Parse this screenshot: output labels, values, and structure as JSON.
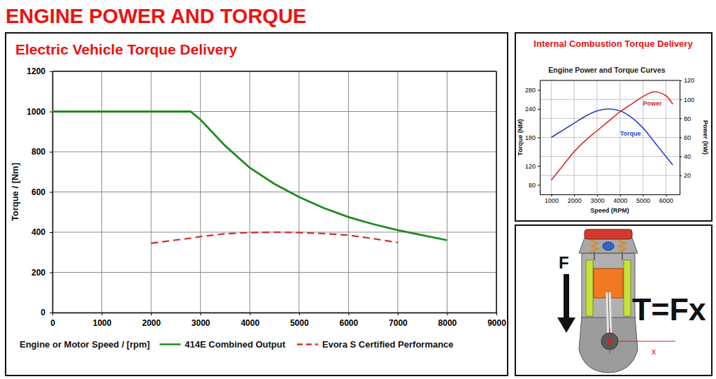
{
  "title": "ENGINE POWER AND TORQUE",
  "chart_data": [
    {
      "type": "line",
      "title": "Electric Vehicle Torque Delivery",
      "x_label": "Engine or Motor Speed / [rpm]",
      "y_label": "Torque / [Nm]",
      "x": [
        0,
        1000,
        2000,
        2800,
        3000,
        3500,
        4000,
        4500,
        5000,
        5500,
        6000,
        6500,
        7000,
        7500,
        8000
      ],
      "xlim": [
        0,
        9000
      ],
      "xticks": [
        0,
        1000,
        2000,
        3000,
        4000,
        5000,
        6000,
        7000,
        8000,
        9000
      ],
      "ylim": [
        0,
        1200
      ],
      "yticks": [
        0,
        200,
        400,
        600,
        800,
        1000,
        1200
      ],
      "grid": true,
      "legend": "bottom",
      "series": [
        {
          "name": "414E Combined Output",
          "color": "#1f8a1f",
          "line_style": "solid",
          "values": [
            1000,
            1000,
            1000,
            1000,
            960,
            830,
            720,
            640,
            575,
            520,
            475,
            440,
            410,
            385,
            360
          ]
        },
        {
          "name": "Evora S Certified Performance",
          "color": "#d42a2a",
          "line_style": "dashed",
          "values": [
            null,
            null,
            345,
            370,
            378,
            392,
            398,
            400,
            398,
            393,
            385,
            368,
            348,
            null,
            null
          ]
        }
      ]
    },
    {
      "type": "line",
      "title": "Internal Combustion Torque Delivery",
      "subtitle": "Engine Power and Torque Curves",
      "x_label": "Speed (RPM)",
      "y_label": "Torque (NM)",
      "y2_label": "Power (kW)",
      "x": [
        1000,
        1500,
        2000,
        2500,
        3000,
        3500,
        4000,
        4500,
        5000,
        5500,
        6000,
        6300
      ],
      "xlim": [
        500,
        6600
      ],
      "xticks": [
        1000,
        2000,
        3000,
        4000,
        5000,
        6000
      ],
      "ylim": [
        60,
        300
      ],
      "yticks": [
        80,
        120,
        180,
        240,
        280
      ],
      "y2lim": [
        0,
        120
      ],
      "y2ticks": [
        20,
        40,
        60,
        80,
        100,
        120
      ],
      "grid": true,
      "series": [
        {
          "name": "Torque",
          "color": "#2b3fd1",
          "values": [
            180,
            195,
            210,
            225,
            236,
            240,
            236,
            222,
            200,
            170,
            140,
            122
          ]
        },
        {
          "name": "Power",
          "color": "#d62828",
          "axis": "y2",
          "values": [
            15,
            30,
            45,
            57,
            67,
            77,
            87,
            95,
            103,
            108,
            104,
            95
          ]
        }
      ]
    }
  ],
  "diagram": {
    "force": "F",
    "formula": "T=Fx",
    "lever_arm": "x"
  }
}
